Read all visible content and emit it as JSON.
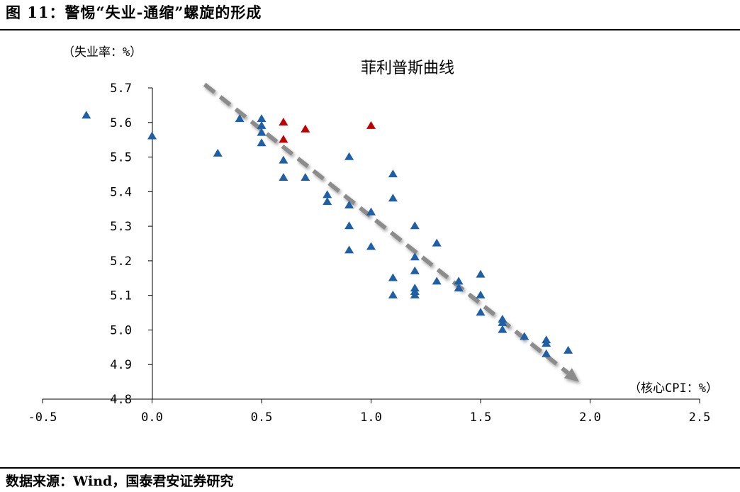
{
  "header": {
    "figure_title": "图 11：警惕“失业-通缩”螺旋的形成"
  },
  "footer": {
    "source": "数据来源：Wind，国泰君安证券研究"
  },
  "colors": {
    "point_blue": "#1f5fa6",
    "point_red": "#c00000",
    "trend_arrow": "#8c8c8c",
    "axis": "#000000"
  },
  "chart_data": {
    "type": "scatter",
    "title": "菲利普斯曲线",
    "ylabel": "（失业率：%）",
    "xlabel": "（核心CPI：%）",
    "xlim": [
      -0.5,
      2.5
    ],
    "ylim": [
      4.8,
      5.7
    ],
    "xticks": [
      "-0.5",
      "0.0",
      "0.5",
      "1.0",
      "1.5",
      "2.0",
      "2.5"
    ],
    "yticks": [
      "4.8",
      "4.9",
      "5.0",
      "5.1",
      "5.2",
      "5.3",
      "5.4",
      "5.5",
      "5.6",
      "5.7"
    ],
    "x_tick_values": [
      -0.5,
      0.0,
      0.5,
      1.0,
      1.5,
      2.0,
      2.5
    ],
    "y_tick_values": [
      4.8,
      4.9,
      5.0,
      5.1,
      5.2,
      5.3,
      5.4,
      5.5,
      5.6,
      5.7
    ],
    "marker": "triangle",
    "grid": false,
    "trend_arrow": {
      "from": [
        0.24,
        5.71
      ],
      "to": [
        1.95,
        4.85
      ],
      "style": "dashed"
    },
    "series": [
      {
        "color_key": "point_blue",
        "points": [
          [
            -0.3,
            5.62
          ],
          [
            0.0,
            5.56
          ],
          [
            0.3,
            5.51
          ],
          [
            0.4,
            5.61
          ],
          [
            0.5,
            5.61
          ],
          [
            0.5,
            5.59
          ],
          [
            0.5,
            5.57
          ],
          [
            0.5,
            5.54
          ],
          [
            0.6,
            5.49
          ],
          [
            0.6,
            5.44
          ],
          [
            0.7,
            5.44
          ],
          [
            0.8,
            5.39
          ],
          [
            0.8,
            5.37
          ],
          [
            0.9,
            5.5
          ],
          [
            0.9,
            5.36
          ],
          [
            0.9,
            5.3
          ],
          [
            0.9,
            5.23
          ],
          [
            1.0,
            5.34
          ],
          [
            1.0,
            5.24
          ],
          [
            1.1,
            5.45
          ],
          [
            1.1,
            5.38
          ],
          [
            1.1,
            5.15
          ],
          [
            1.1,
            5.1
          ],
          [
            1.2,
            5.3
          ],
          [
            1.2,
            5.21
          ],
          [
            1.2,
            5.17
          ],
          [
            1.2,
            5.12
          ],
          [
            1.2,
            5.11
          ],
          [
            1.2,
            5.1
          ],
          [
            1.3,
            5.25
          ],
          [
            1.3,
            5.14
          ],
          [
            1.4,
            5.14
          ],
          [
            1.4,
            5.12
          ],
          [
            1.5,
            5.16
          ],
          [
            1.5,
            5.1
          ],
          [
            1.5,
            5.05
          ],
          [
            1.6,
            5.03
          ],
          [
            1.6,
            5.02
          ],
          [
            1.6,
            5.0
          ],
          [
            1.7,
            4.98
          ],
          [
            1.8,
            4.97
          ],
          [
            1.8,
            4.96
          ],
          [
            1.8,
            4.93
          ],
          [
            1.9,
            4.94
          ]
        ]
      },
      {
        "color_key": "point_red",
        "points": [
          [
            0.6,
            5.6
          ],
          [
            0.6,
            5.55
          ],
          [
            0.7,
            5.58
          ],
          [
            1.0,
            5.59
          ]
        ]
      }
    ]
  }
}
